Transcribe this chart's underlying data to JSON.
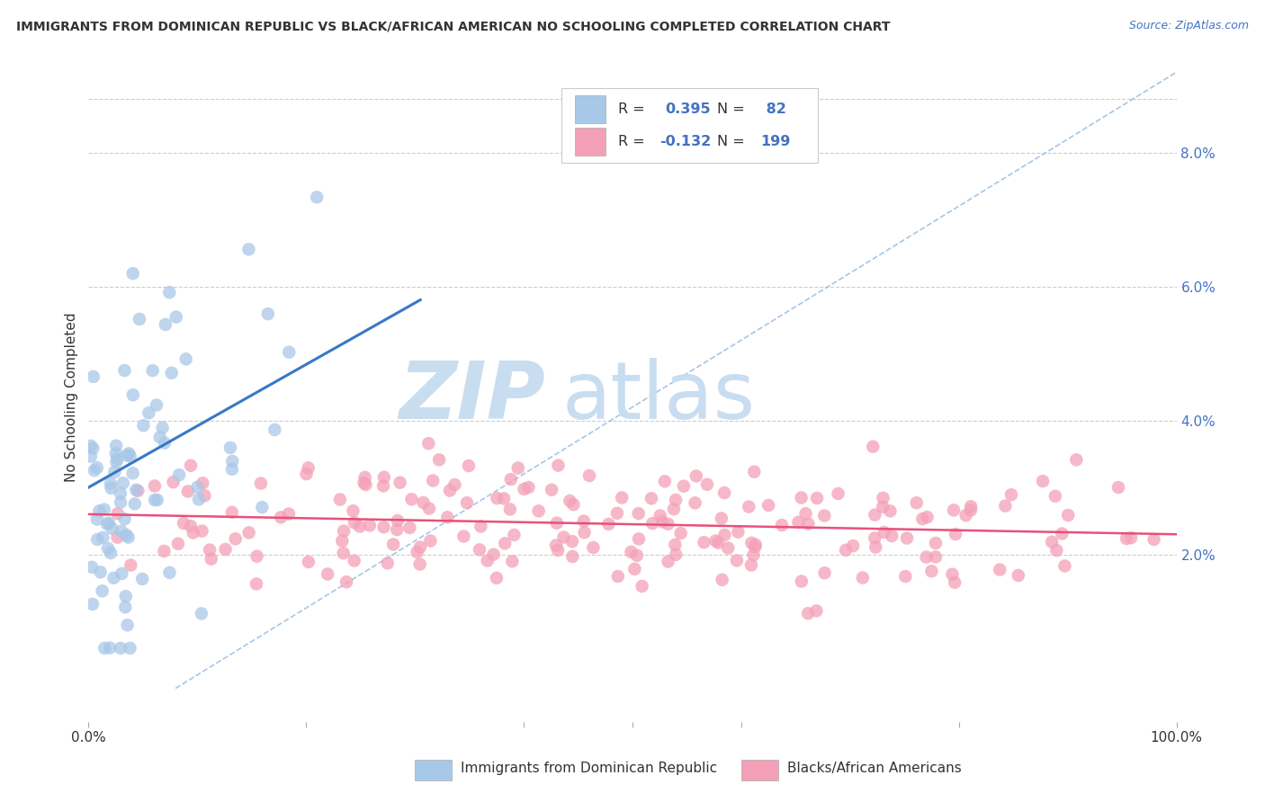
{
  "title": "IMMIGRANTS FROM DOMINICAN REPUBLIC VS BLACK/AFRICAN AMERICAN NO SCHOOLING COMPLETED CORRELATION CHART",
  "source": "Source: ZipAtlas.com",
  "ylabel": "No Schooling Completed",
  "legend_label_blue": "Immigrants from Dominican Republic",
  "legend_label_pink": "Blacks/African Americans",
  "blue_color": "#a8c8e8",
  "pink_color": "#f4a0b8",
  "blue_line_color": "#3878c8",
  "pink_line_color": "#e8507a",
  "diag_line_color": "#90b8e0",
  "right_ytick_vals": [
    0.0,
    0.02,
    0.04,
    0.06,
    0.08
  ],
  "right_yticklabels": [
    "",
    "2.0%",
    "4.0%",
    "6.0%",
    "8.0%"
  ],
  "xlim": [
    0.0,
    1.0
  ],
  "ylim": [
    -0.005,
    0.092
  ],
  "blue_R": 0.395,
  "pink_R": -0.132,
  "blue_N": 82,
  "pink_N": 199,
  "watermark_zip": "ZIP",
  "watermark_atlas": "atlas",
  "watermark_color": "#c8ddf0",
  "background_color": "#ffffff",
  "grid_color": "#c8c8c8",
  "text_color": "#4472c4",
  "dark_text": "#333333"
}
